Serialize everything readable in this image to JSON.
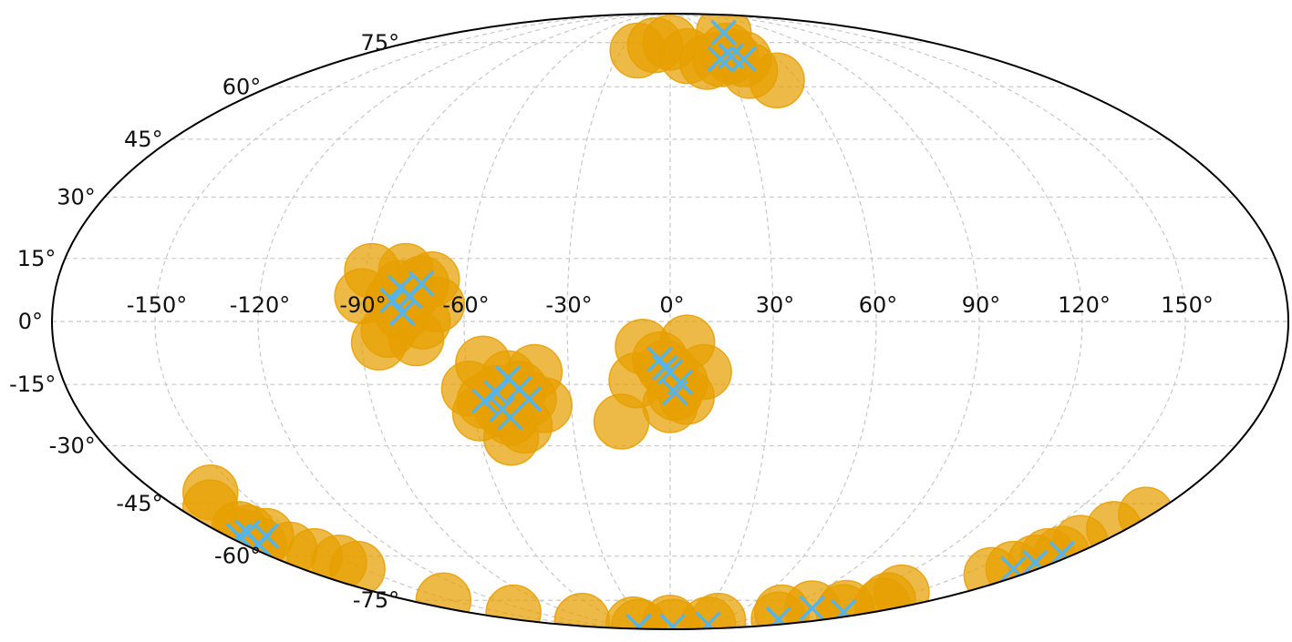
{
  "chart_data": {
    "type": "scatter",
    "projection": "mollweide",
    "title": "",
    "xlabel": "",
    "ylabel": "",
    "grid": true,
    "xlim": [
      -180,
      180
    ],
    "ylim": [
      -90,
      90
    ],
    "lon_ticks": [
      -150,
      -120,
      -90,
      -60,
      -30,
      0,
      30,
      60,
      90,
      120,
      150
    ],
    "lon_tick_labels": [
      "-150°",
      "-120°",
      "-90°",
      "-60°",
      "-30°",
      "0°",
      "30°",
      "60°",
      "90°",
      "120°",
      "150°"
    ],
    "lat_ticks": [
      75,
      60,
      45,
      30,
      15,
      0,
      -15,
      -30,
      -45,
      -60,
      -75
    ],
    "lat_tick_labels": [
      "75°",
      "60°",
      "45°",
      "30°",
      "15°",
      "0°",
      "-15°",
      "-30°",
      "-45°",
      "-60°",
      "-75°"
    ],
    "series": [
      {
        "marker": "circle",
        "color": "#e69f00",
        "points": [
          [
            -79,
            8
          ],
          [
            -73,
            9
          ],
          [
            -78,
            2
          ],
          [
            -81,
            5
          ],
          [
            -76,
            6
          ],
          [
            -90,
            6
          ],
          [
            -70,
            10
          ],
          [
            -85,
            -5
          ],
          [
            -72,
            0
          ],
          [
            -78,
            12
          ],
          [
            -88,
            12
          ],
          [
            -68,
            4
          ],
          [
            -82,
            -2
          ],
          [
            -74,
            -4
          ],
          [
            -56,
            -19
          ],
          [
            -48,
            -13.5
          ],
          [
            -52,
            -17
          ],
          [
            -42.5,
            -18.5
          ],
          [
            -49,
            -23
          ],
          [
            -45,
            -16
          ],
          [
            -51,
            -21
          ],
          [
            -55,
            -10
          ],
          [
            -40,
            -12
          ],
          [
            -58,
            -22
          ],
          [
            -45,
            -25
          ],
          [
            -38,
            -20
          ],
          [
            -50,
            -28
          ],
          [
            -60,
            -16
          ],
          [
            -3,
            -9
          ],
          [
            0,
            -12
          ],
          [
            3,
            -14.5
          ],
          [
            1.5,
            -17
          ],
          [
            -1.5,
            -11
          ],
          [
            -8,
            -6
          ],
          [
            5,
            -5
          ],
          [
            10,
            -12
          ],
          [
            -10,
            -14
          ],
          [
            0,
            -20
          ],
          [
            5,
            -18
          ],
          [
            -15,
            -24
          ],
          [
            45,
            79
          ],
          [
            28,
            69
          ],
          [
            41,
            69
          ],
          [
            35,
            70
          ],
          [
            -20,
            72
          ],
          [
            0,
            75
          ],
          [
            20,
            68
          ],
          [
            35,
            72
          ],
          [
            50,
            62
          ],
          [
            40,
            65
          ],
          [
            10,
            70
          ],
          [
            -10,
            74
          ],
          [
            -175,
            -54
          ],
          [
            -174,
            -56.6
          ],
          [
            -164,
            -54
          ],
          [
            -169,
            -53
          ],
          [
            -161,
            -42
          ],
          [
            -168,
            -46
          ],
          [
            -170,
            -52
          ],
          [
            -165,
            -58
          ],
          [
            -160,
            -60
          ],
          [
            -155,
            -62
          ],
          [
            -153,
            -64
          ],
          [
            -156,
            -75
          ],
          [
            -70,
            -87.5
          ],
          [
            6,
            -87.5
          ],
          [
            62,
            -86
          ],
          [
            126,
            -83.3
          ],
          [
            114,
            -78.2
          ],
          [
            153,
            -79.8
          ],
          [
            -140,
            -80
          ],
          [
            -110,
            -84
          ],
          [
            -60,
            -86
          ],
          [
            0,
            -85
          ],
          [
            60,
            -84
          ],
          [
            100,
            -80
          ],
          [
            140,
            -78
          ],
          [
            160,
            -77
          ],
          [
            142,
            -72
          ],
          [
            150,
            -75
          ],
          [
            168,
            -64
          ],
          [
            171,
            -62
          ],
          [
            174,
            -59.3
          ],
          [
            165,
            -66
          ],
          [
            170,
            -60
          ],
          [
            175,
            -52
          ],
          [
            178,
            -48
          ],
          [
            172,
            -56
          ]
        ]
      },
      {
        "marker": "x",
        "color": "#56b4e9",
        "points": [
          [
            -79,
            8
          ],
          [
            -73,
            9
          ],
          [
            -78,
            2
          ],
          [
            -81,
            5
          ],
          [
            -76,
            6
          ],
          [
            -56,
            -19
          ],
          [
            -48,
            -13.5
          ],
          [
            -52,
            -17
          ],
          [
            -42.5,
            -18.5
          ],
          [
            -49,
            -23
          ],
          [
            -45,
            -16
          ],
          [
            -51,
            -21
          ],
          [
            -3,
            -9
          ],
          [
            0,
            -12
          ],
          [
            3,
            -14.5
          ],
          [
            1.5,
            -17
          ],
          [
            -1.5,
            -11
          ],
          [
            45,
            79
          ],
          [
            28,
            69
          ],
          [
            41,
            69
          ],
          [
            35,
            70
          ],
          [
            -175,
            -54
          ],
          [
            -174,
            -56.6
          ],
          [
            -164,
            -54
          ],
          [
            -169,
            -53
          ],
          [
            168,
            -64
          ],
          [
            171,
            -62
          ],
          [
            174,
            -59.3
          ],
          [
            -70,
            -87.5
          ],
          [
            6,
            -87.5
          ],
          [
            62,
            -86
          ],
          [
            126,
            -83.3
          ],
          [
            114,
            -78.2
          ],
          [
            153,
            -79.8
          ]
        ]
      }
    ]
  }
}
